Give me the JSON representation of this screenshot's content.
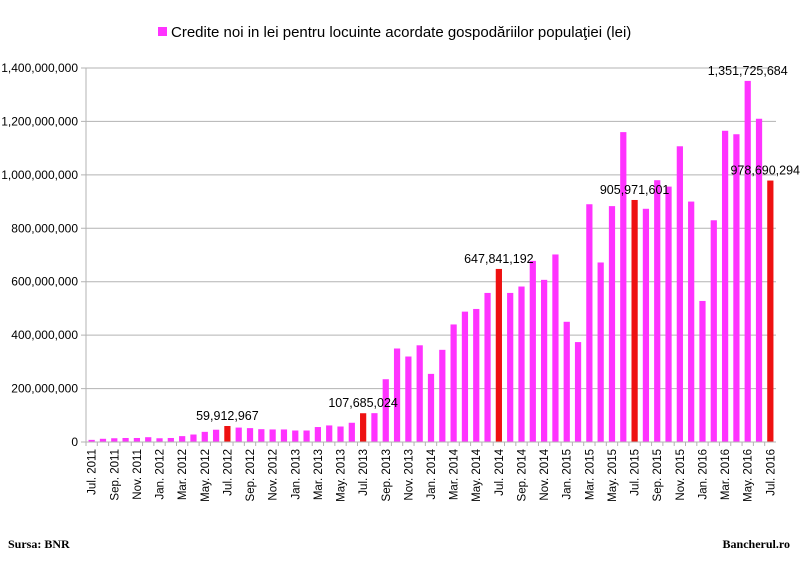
{
  "chart_data": {
    "type": "bar",
    "title": "",
    "xlabel": "",
    "ylabel": "",
    "legend": {
      "position": "top",
      "series_name": "Credite noi in lei pentru locuinte acordate gospodăriilor populaţiei (lei)"
    },
    "ylim": [
      0,
      1400000000
    ],
    "yticks": [
      "0",
      "200,000,000",
      "400,000,000",
      "600,000,000",
      "800,000,000",
      "1,000,000,000",
      "1,200,000,000",
      "1,400,000,000"
    ],
    "grid": true,
    "colors": {
      "bar": "#ff33ff",
      "highlight": "#ee1111",
      "grid": "#b3b3b3"
    },
    "categories": [
      "Jul. 2011",
      "Aug. 2011",
      "Sep. 2011",
      "Oct. 2011",
      "Nov. 2011",
      "Dec. 2011",
      "Jan. 2012",
      "Feb. 2012",
      "Mar. 2012",
      "Apr. 2012",
      "May. 2012",
      "Jun. 2012",
      "Jul. 2012",
      "Aug. 2012",
      "Sep. 2012",
      "Oct. 2012",
      "Nov. 2012",
      "Dec. 2012",
      "Jan. 2013",
      "Feb. 2013",
      "Mar. 2013",
      "Apr. 2013",
      "May. 2013",
      "Jun. 2013",
      "Jul. 2013",
      "Aug. 2013",
      "Sep. 2013",
      "Oct. 2013",
      "Nov. 2013",
      "Dec. 2013",
      "Jan. 2014",
      "Feb. 2014",
      "Mar. 2014",
      "Apr. 2014",
      "May. 2014",
      "Jun. 2014",
      "Jul. 2014",
      "Aug. 2014",
      "Sep. 2014",
      "Oct. 2014",
      "Nov. 2014",
      "Dec. 2014",
      "Jan. 2015",
      "Feb. 2015",
      "Mar. 2015",
      "Apr. 2015",
      "May. 2015",
      "Jun. 2015",
      "Jul. 2015",
      "Aug. 2015",
      "Sep. 2015",
      "Oct. 2015",
      "Nov. 2015",
      "Dec. 2015",
      "Jan. 2016",
      "Feb. 2016",
      "Mar. 2016",
      "Apr. 2016",
      "May. 2016",
      "Jun. 2016",
      "Jul. 2016"
    ],
    "xtick_labels": [
      "Jul. 2011",
      "",
      "Sep. 2011",
      "",
      "Nov. 2011",
      "",
      "Jan. 2012",
      "",
      "Mar. 2012",
      "",
      "May. 2012",
      "",
      "Jul. 2012",
      "",
      "Sep. 2012",
      "",
      "Nov. 2012",
      "",
      "Jan. 2013",
      "",
      "Mar. 2013",
      "",
      "May. 2013",
      "",
      "Jul. 2013",
      "",
      "Sep. 2013",
      "",
      "Nov. 2013",
      "",
      "Jan. 2014",
      "",
      "Mar. 2014",
      "",
      "May. 2014",
      "",
      "Jul. 2014",
      "",
      "Sep. 2014",
      "",
      "Nov. 2014",
      "",
      "Jan. 2015",
      "",
      "Mar. 2015",
      "",
      "May. 2015",
      "",
      "Jul. 2015",
      "",
      "Sep. 2015",
      "",
      "Nov. 2015",
      "",
      "Jan. 2016",
      "",
      "Mar. 2016",
      "",
      "May. 2016",
      "",
      "Jul. 2016"
    ],
    "values": [
      8000000,
      12000000,
      14000000,
      15000000,
      15000000,
      18000000,
      14000000,
      15000000,
      22000000,
      28000000,
      38000000,
      46000000,
      59912967,
      54000000,
      52000000,
      48000000,
      47000000,
      47000000,
      43000000,
      43000000,
      56000000,
      62000000,
      58000000,
      72000000,
      107685024,
      108000000,
      235000000,
      350000000,
      320000000,
      362000000,
      255000000,
      345000000,
      440000000,
      488000000,
      498000000,
      558000000,
      647841192,
      558000000,
      582000000,
      678000000,
      607000000,
      702000000,
      450000000,
      374000000,
      890000000,
      672000000,
      883000000,
      1160000000,
      905971601,
      873000000,
      980000000,
      956000000,
      1107000000,
      900000000,
      528000000,
      830000000,
      1165000000,
      1152000000,
      1351725684,
      1210000000,
      978690294
    ],
    "highlighted_indices": [
      12,
      24,
      36,
      48,
      60
    ],
    "data_labels": [
      {
        "index": 12,
        "text": "59,912,967"
      },
      {
        "index": 24,
        "text": "107,685,024"
      },
      {
        "index": 36,
        "text": "647,841,192"
      },
      {
        "index": 48,
        "text": "905,971,601"
      },
      {
        "index": 58,
        "text": "1,351,725,684"
      },
      {
        "index": 60,
        "text": "978,690,294"
      }
    ]
  },
  "footer": {
    "source": "Sursa: BNR",
    "brand": "Bancherul.ro"
  }
}
